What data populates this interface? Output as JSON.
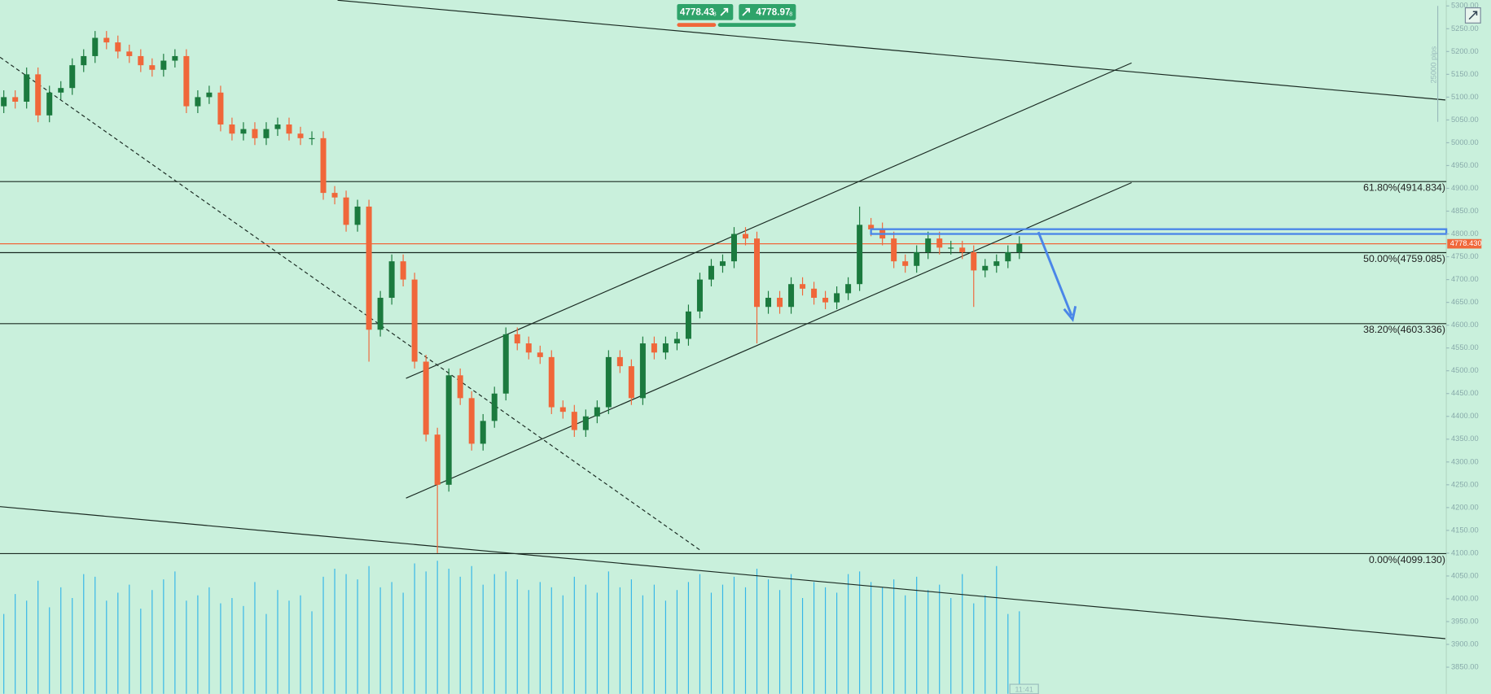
{
  "chart_data": {
    "type": "candlestick",
    "ylim": [
      3791.7,
      5312.5
    ],
    "yticks": [
      {
        "value": 5300,
        "label": "5300.00"
      },
      {
        "value": 5250,
        "label": "5250.00"
      },
      {
        "value": 5200,
        "label": "5200.00"
      },
      {
        "value": 5150,
        "label": "5150.00"
      },
      {
        "value": 5100,
        "label": "5100.00"
      },
      {
        "value": 5050,
        "label": "5050.00"
      },
      {
        "value": 5000,
        "label": "5000.00"
      },
      {
        "value": 4950,
        "label": "4950.00"
      },
      {
        "value": 4900,
        "label": "4900.00"
      },
      {
        "value": 4850,
        "label": "4850.00"
      },
      {
        "value": 4800,
        "label": "4800.00"
      },
      {
        "value": 4750,
        "label": "4750.00"
      },
      {
        "value": 4700,
        "label": "4700.00"
      },
      {
        "value": 4650,
        "label": "4650.00"
      },
      {
        "value": 4600,
        "label": "4600.00"
      },
      {
        "value": 4550,
        "label": "4550.00"
      },
      {
        "value": 4500,
        "label": "4500.00"
      },
      {
        "value": 4450,
        "label": "4450.00"
      },
      {
        "value": 4400,
        "label": "4400.00"
      },
      {
        "value": 4350,
        "label": "4350.00"
      },
      {
        "value": 4300,
        "label": "4300.00"
      },
      {
        "value": 4250,
        "label": "4250.00"
      },
      {
        "value": 4200,
        "label": "4200.00"
      },
      {
        "value": 4150,
        "label": "4150.00"
      },
      {
        "value": 4100,
        "label": "4100.00"
      },
      {
        "value": 4050,
        "label": "4050.00"
      },
      {
        "value": 4000,
        "label": "4000.00"
      },
      {
        "value": 3950,
        "label": "3950.00"
      },
      {
        "value": 3900,
        "label": "3900.00"
      },
      {
        "value": 3850,
        "label": "3850.00"
      }
    ],
    "open": [
      5080,
      5100,
      5090,
      5150,
      5060,
      5110,
      5120,
      5170,
      5190,
      5230,
      5220,
      5200,
      5190,
      5170,
      5160,
      5180,
      5190,
      5080,
      5100,
      5110,
      5040,
      5020,
      5030,
      5010,
      5030,
      5040,
      5020,
      5010,
      5010,
      4890,
      4880,
      4820,
      4860,
      4590,
      4660,
      4740,
      4700,
      4520,
      4360,
      4250,
      4490,
      4440,
      4340,
      4390,
      4450,
      4580,
      4560,
      4540,
      4530,
      4420,
      4410,
      4370,
      4400,
      4420,
      4530,
      4510,
      4440,
      4560,
      4540,
      4560,
      4570,
      4630,
      4700,
      4730,
      4740,
      4800,
      4790,
      4640,
      4660,
      4640,
      4690,
      4680,
      4660,
      4650,
      4670,
      4690,
      4820,
      4810,
      4790,
      4740,
      4730,
      4760,
      4790,
      4770,
      4770,
      4760,
      4720,
      4730,
      4740,
      4760
    ],
    "high": [
      5115,
      5115,
      5165,
      5165,
      5125,
      5135,
      5185,
      5205,
      5245,
      5245,
      5235,
      5215,
      5205,
      5185,
      5195,
      5205,
      5205,
      5115,
      5125,
      5125,
      5055,
      5045,
      5045,
      5045,
      5055,
      5055,
      5035,
      5025,
      5025,
      4905,
      4895,
      4875,
      4875,
      4675,
      4755,
      4755,
      4715,
      4535,
      4375,
      4505,
      4505,
      4455,
      4405,
      4465,
      4595,
      4595,
      4575,
      4555,
      4545,
      4435,
      4425,
      4415,
      4435,
      4545,
      4545,
      4525,
      4575,
      4575,
      4575,
      4585,
      4645,
      4715,
      4745,
      4755,
      4815,
      4815,
      4805,
      4675,
      4675,
      4705,
      4705,
      4695,
      4675,
      4685,
      4705,
      4860,
      4835,
      4825,
      4805,
      4755,
      4775,
      4805,
      4805,
      4785,
      4785,
      4775,
      4745,
      4755,
      4775,
      4795
    ],
    "low": [
      5065,
      5075,
      5075,
      5045,
      5045,
      5095,
      5105,
      5155,
      5175,
      5205,
      5185,
      5175,
      5155,
      5145,
      5145,
      5165,
      5065,
      5065,
      5085,
      5025,
      5005,
      5005,
      4995,
      4995,
      5015,
      5005,
      4995,
      4995,
      4875,
      4865,
      4805,
      4805,
      4520,
      4575,
      4645,
      4685,
      4505,
      4345,
      4100,
      4235,
      4425,
      4325,
      4325,
      4375,
      4435,
      4545,
      4525,
      4515,
      4405,
      4395,
      4355,
      4355,
      4385,
      4405,
      4495,
      4425,
      4425,
      4525,
      4525,
      4545,
      4555,
      4615,
      4685,
      4715,
      4725,
      4775,
      4560,
      4625,
      4625,
      4625,
      4665,
      4645,
      4635,
      4635,
      4655,
      4675,
      4795,
      4775,
      4725,
      4715,
      4715,
      4745,
      4755,
      4755,
      4745,
      4640,
      4705,
      4715,
      4725,
      4745
    ],
    "close": [
      5100,
      5090,
      5150,
      5060,
      5110,
      5120,
      5170,
      5190,
      5230,
      5220,
      5200,
      5190,
      5170,
      5160,
      5180,
      5190,
      5080,
      5100,
      5110,
      5040,
      5020,
      5030,
      5010,
      5030,
      5040,
      5020,
      5010,
      5010,
      4890,
      4880,
      4820,
      4860,
      4590,
      4660,
      4740,
      4700,
      4520,
      4360,
      4250,
      4490,
      4440,
      4340,
      4390,
      4450,
      4580,
      4560,
      4540,
      4530,
      4420,
      4410,
      4370,
      4400,
      4420,
      4530,
      4510,
      4440,
      4560,
      4540,
      4560,
      4570,
      4630,
      4700,
      4730,
      4740,
      4800,
      4790,
      4640,
      4660,
      4640,
      4690,
      4680,
      4660,
      4650,
      4670,
      4690,
      4820,
      4810,
      4790,
      4740,
      4730,
      4760,
      4790,
      4770,
      4770,
      4760,
      4720,
      4730,
      4740,
      4760,
      4778.43
    ],
    "volume": [
      60,
      75,
      70,
      85,
      65,
      80,
      72,
      90,
      88,
      70,
      76,
      82,
      64,
      78,
      86,
      92,
      70,
      74,
      80,
      68,
      72,
      66,
      84,
      60,
      78,
      70,
      74,
      62,
      88,
      94,
      90,
      86,
      96,
      80,
      84,
      76,
      98,
      92,
      100,
      94,
      88,
      96,
      82,
      90,
      92,
      86,
      78,
      84,
      80,
      74,
      88,
      82,
      76,
      92,
      80,
      86,
      74,
      82,
      70,
      78,
      84,
      90,
      76,
      82,
      88,
      80,
      94,
      86,
      78,
      90,
      72,
      84,
      80,
      76,
      90,
      92,
      84,
      80,
      86,
      74,
      88,
      78,
      82,
      72,
      90,
      68,
      74,
      96,
      60,
      62
    ],
    "up_color": "#1b7a3e",
    "down_color": "#f0673a",
    "volume_color": "#35b6e8",
    "levels": [
      {
        "value": 4914.834,
        "label": "61.80%(4914.834)"
      },
      {
        "value": 4759.085,
        "label": "50.00%(4759.085)"
      },
      {
        "value": 4603.336,
        "label": "38.20%(4603.336)"
      },
      {
        "value": 4099.13,
        "label": "0.00%(4099.130)"
      }
    ],
    "last_price": {
      "value": 4778.43,
      "label": "4778.430"
    },
    "bid": {
      "price": "4778.43",
      "pipette": "8"
    },
    "ask": {
      "price": "4778.97",
      "pipette": "8"
    },
    "range_note": "25000 pips",
    "time_note": "11:41"
  }
}
